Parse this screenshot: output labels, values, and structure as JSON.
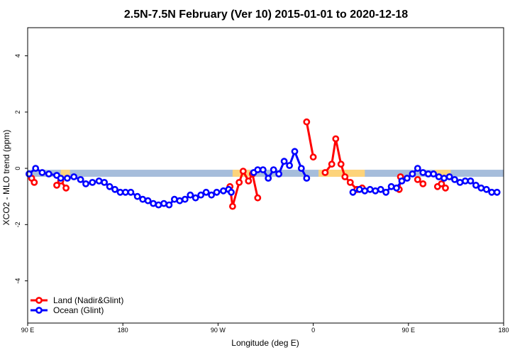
{
  "chart_data": {
    "type": "line",
    "title": "2.5N-7.5N February (Ver 10)   2015-01-01 to 2020-12-18",
    "xlabel": "Longitude (deg E)",
    "ylabel": "XCO2 - MLO trend (ppm)",
    "xlim": [
      0,
      360
    ],
    "ylim": [
      -5.5,
      5
    ],
    "x_ticks": [
      {
        "value": 0,
        "label": "90 E"
      },
      {
        "value": 72,
        "label": "180"
      },
      {
        "value": 144,
        "label": "90 W"
      },
      {
        "value": 216,
        "label": "0"
      },
      {
        "value": 288,
        "label": "90 E"
      },
      {
        "value": 360,
        "label": "180"
      }
    ],
    "y_ticks": [
      {
        "value": -4,
        "label": "-4"
      },
      {
        "value": -2,
        "label": "-2"
      },
      {
        "value": 0,
        "label": "0"
      },
      {
        "value": 2,
        "label": "2"
      },
      {
        "value": 4,
        "label": "4"
      }
    ],
    "legend_position": "bottom-left",
    "band": {
      "y_low": -0.3,
      "y_high": -0.05,
      "ocean_color": "#a6bddb",
      "land_color": "#fdd37a",
      "land_segments": [
        [
          25,
          32
        ],
        [
          155,
          168
        ],
        [
          220,
          255
        ],
        [
          308,
          320
        ]
      ]
    },
    "series": [
      {
        "name": "Land (Nadir&Glint)",
        "color": "#ff0000",
        "segments": [
          [
            [
              3,
              -0.35
            ],
            [
              5,
              -0.5
            ]
          ],
          [
            [
              22,
              -0.6
            ],
            [
              25,
              -0.45
            ],
            [
              29,
              -0.7
            ]
          ],
          [
            [
              153,
              -0.65
            ],
            [
              155,
              -1.35
            ],
            [
              160,
              -0.5
            ],
            [
              163,
              -0.1
            ],
            [
              167,
              -0.45
            ],
            [
              170,
              -0.2
            ],
            [
              174,
              -1.05
            ]
          ],
          [
            [
              211,
              1.65
            ],
            [
              216,
              0.4
            ]
          ],
          [
            [
              225,
              -0.15
            ],
            [
              230,
              0.15
            ],
            [
              233,
              1.05
            ],
            [
              237,
              0.15
            ],
            [
              240,
              -0.3
            ],
            [
              244,
              -0.5
            ],
            [
              249,
              -0.75
            ],
            [
              253,
              -0.7
            ]
          ],
          [
            [
              281,
              -0.75
            ],
            [
              282,
              -0.3
            ]
          ],
          [
            [
              295,
              -0.4
            ],
            [
              299,
              -0.55
            ]
          ],
          [
            [
              310,
              -0.65
            ],
            [
              313,
              -0.55
            ],
            [
              316,
              -0.7
            ]
          ]
        ]
      },
      {
        "name": "Ocean (Glint)",
        "color": "#0000ff",
        "segments": [
          [
            [
              1,
              -0.2
            ],
            [
              6,
              0
            ],
            [
              11,
              -0.15
            ],
            [
              16,
              -0.2
            ],
            [
              22,
              -0.25
            ],
            [
              25,
              -0.35
            ],
            [
              30,
              -0.35
            ],
            [
              35,
              -0.3
            ],
            [
              40,
              -0.4
            ],
            [
              44,
              -0.55
            ],
            [
              49,
              -0.5
            ],
            [
              54,
              -0.45
            ],
            [
              58,
              -0.5
            ],
            [
              62,
              -0.65
            ],
            [
              66,
              -0.75
            ],
            [
              70,
              -0.85
            ],
            [
              74,
              -0.85
            ],
            [
              78,
              -0.85
            ],
            [
              83,
              -1.0
            ],
            [
              87,
              -1.1
            ],
            [
              91,
              -1.15
            ],
            [
              95,
              -1.25
            ],
            [
              99,
              -1.3
            ],
            [
              103,
              -1.25
            ],
            [
              107,
              -1.3
            ],
            [
              111,
              -1.1
            ],
            [
              115,
              -1.15
            ],
            [
              119,
              -1.1
            ],
            [
              123,
              -0.95
            ],
            [
              127,
              -1.05
            ],
            [
              131,
              -0.95
            ],
            [
              135,
              -0.85
            ],
            [
              139,
              -0.95
            ],
            [
              143,
              -0.85
            ],
            [
              148,
              -0.8
            ],
            [
              152,
              -0.75
            ],
            [
              154,
              -0.85
            ]
          ],
          [
            [
              171,
              -0.15
            ],
            [
              174,
              -0.05
            ],
            [
              178,
              -0.05
            ],
            [
              182,
              -0.35
            ],
            [
              186,
              -0.05
            ],
            [
              190,
              -0.2
            ],
            [
              194,
              0.25
            ],
            [
              198,
              0.1
            ],
            [
              202,
              0.6
            ],
            [
              207,
              0.0
            ],
            [
              211,
              -0.35
            ]
          ],
          [
            [
              246,
              -0.85
            ],
            [
              251,
              -0.75
            ],
            [
              255,
              -0.8
            ],
            [
              259,
              -0.75
            ],
            [
              263,
              -0.8
            ],
            [
              267,
              -0.75
            ],
            [
              271,
              -0.85
            ],
            [
              275,
              -0.65
            ],
            [
              279,
              -0.7
            ],
            [
              283,
              -0.45
            ],
            [
              287,
              -0.35
            ],
            [
              291,
              -0.2
            ],
            [
              295,
              0.0
            ],
            [
              299,
              -0.15
            ],
            [
              303,
              -0.2
            ],
            [
              307,
              -0.2
            ],
            [
              311,
              -0.3
            ],
            [
              315,
              -0.35
            ],
            [
              319,
              -0.3
            ],
            [
              323,
              -0.4
            ],
            [
              327,
              -0.5
            ],
            [
              331,
              -0.45
            ],
            [
              335,
              -0.45
            ],
            [
              339,
              -0.6
            ],
            [
              343,
              -0.7
            ],
            [
              347,
              -0.75
            ],
            [
              351,
              -0.85
            ],
            [
              355,
              -0.85
            ]
          ]
        ]
      }
    ]
  }
}
